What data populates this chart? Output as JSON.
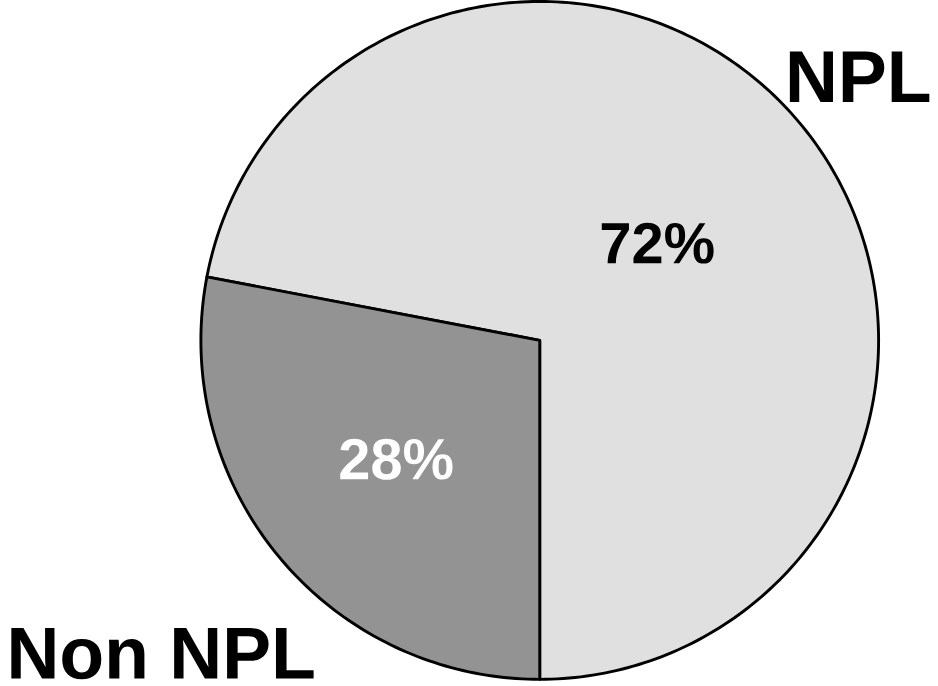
{
  "chart_data": {
    "type": "pie",
    "categories": [
      "NPL",
      "Non NPL"
    ],
    "values": [
      72,
      28
    ],
    "colors": [
      "#e0e0e0",
      "#939393"
    ],
    "value_labels": [
      "72%",
      "28%"
    ]
  }
}
